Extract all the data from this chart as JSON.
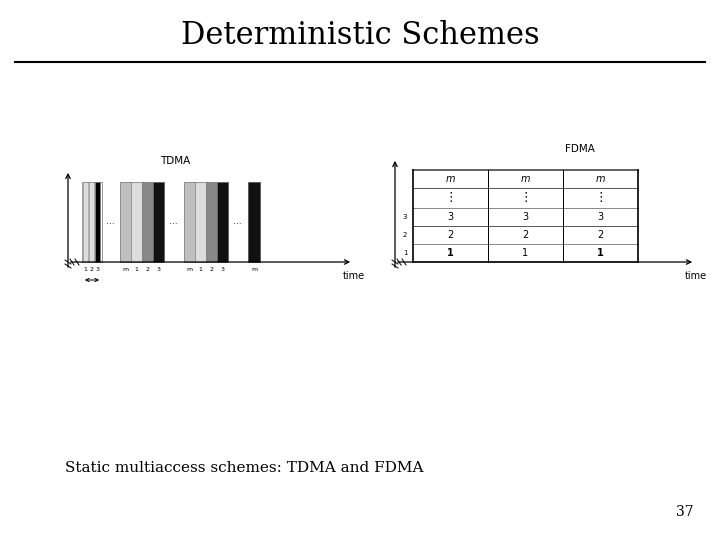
{
  "title": "Deterministic Schemes",
  "subtitle": "Static multiaccess schemes: TDMA and FDMA",
  "page_number": "37",
  "background_color": "#ffffff",
  "title_fontsize": 22,
  "subtitle_fontsize": 11,
  "page_fontsize": 10,
  "tdma_label": "TDMA",
  "fdma_label": "FDMA",
  "time_label": "time"
}
